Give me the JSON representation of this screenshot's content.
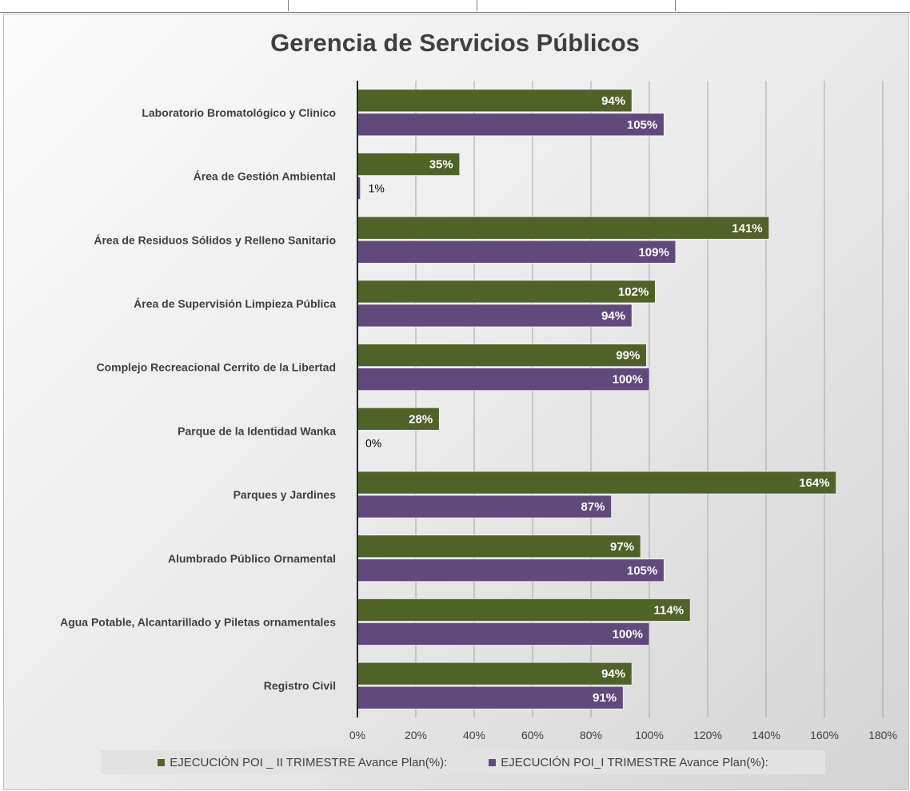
{
  "chart_data": {
    "type": "bar",
    "orientation": "horizontal",
    "title": "Gerencia de Servicios Públicos",
    "categories": [
      "Laboratorio Bromatológico y Clinico",
      "Área de Gestión Ambiental",
      "Área de Residuos Sólidos y Relleno Sanitario",
      "Área de Supervisión Limpieza Pública",
      "Complejo Recreacional Cerrito de la Libertad",
      "Parque de la Identidad Wanka",
      "Parques y Jardines",
      "Alumbrado Público Ornamental",
      "Agua Potable, Alcantarillado y Piletas ornamentales",
      "Registro Civil"
    ],
    "series": [
      {
        "name": "EJECUCIÓN POI _ II TRIMESTRE Avance Plan(%):",
        "color": "#4f6228",
        "values": [
          94,
          35,
          141,
          102,
          99,
          28,
          164,
          97,
          114,
          94
        ],
        "labels": [
          "94%",
          "35%",
          "141%",
          "102%",
          "99%",
          "28%",
          "164%",
          "97%",
          "114%",
          "94%"
        ]
      },
      {
        "name": "EJECUCIÓN POI_I TRIMESTRE Avance Plan(%):",
        "color": "#604a7b",
        "values": [
          105,
          1,
          109,
          94,
          100,
          0,
          87,
          105,
          100,
          91
        ],
        "labels": [
          "105%",
          "1%",
          "109%",
          "94%",
          "100%",
          "0%",
          "87%",
          "105%",
          "100%",
          "91%"
        ]
      }
    ],
    "xlim": [
      0,
      180
    ],
    "xticks": [
      "0%",
      "20%",
      "40%",
      "60%",
      "80%",
      "100%",
      "120%",
      "140%",
      "160%",
      "180%"
    ],
    "grid": "vertical",
    "legend_position": "bottom"
  }
}
